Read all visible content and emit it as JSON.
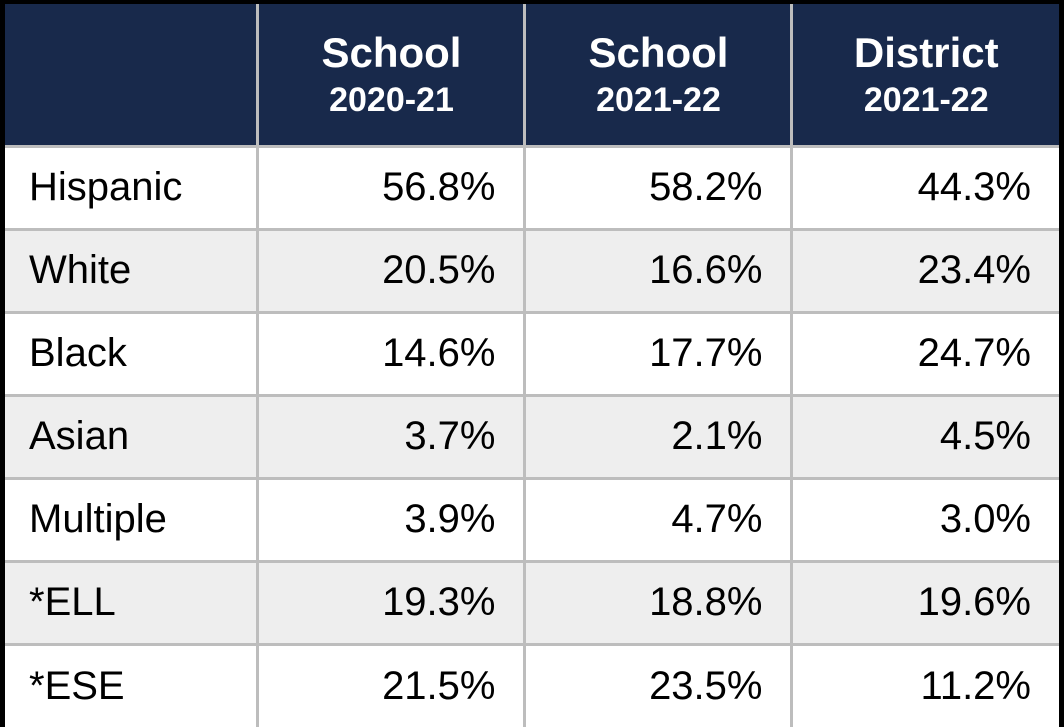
{
  "table": {
    "type": "table",
    "header_bg": "#18294b",
    "header_text_color": "#ffffff",
    "row_alt_bg": "#eeeeee",
    "row_bg": "#ffffff",
    "border_color": "#bdbdbd",
    "outer_border_color": "#000000",
    "title_fontsize": 42,
    "year_fontsize": 34,
    "cell_fontsize": 40,
    "columns": [
      {
        "title": "",
        "year": ""
      },
      {
        "title": "School",
        "year": "2020-21"
      },
      {
        "title": "School",
        "year": "2021-22"
      },
      {
        "title": "District",
        "year": "2021-22"
      }
    ],
    "rows": [
      {
        "label": "Hispanic",
        "values": [
          "56.8%",
          "58.2%",
          "44.3%"
        ]
      },
      {
        "label": "White",
        "values": [
          "20.5%",
          "16.6%",
          "23.4%"
        ]
      },
      {
        "label": "Black",
        "values": [
          "14.6%",
          "17.7%",
          "24.7%"
        ]
      },
      {
        "label": "Asian",
        "values": [
          "3.7%",
          "2.1%",
          "4.5%"
        ]
      },
      {
        "label": "Multiple",
        "values": [
          "3.9%",
          "4.7%",
          "3.0%"
        ]
      },
      {
        "label": "*ELL",
        "values": [
          "19.3%",
          "18.8%",
          "19.6%"
        ]
      },
      {
        "label": "*ESE",
        "values": [
          "21.5%",
          "23.5%",
          "11.2%"
        ]
      }
    ]
  }
}
